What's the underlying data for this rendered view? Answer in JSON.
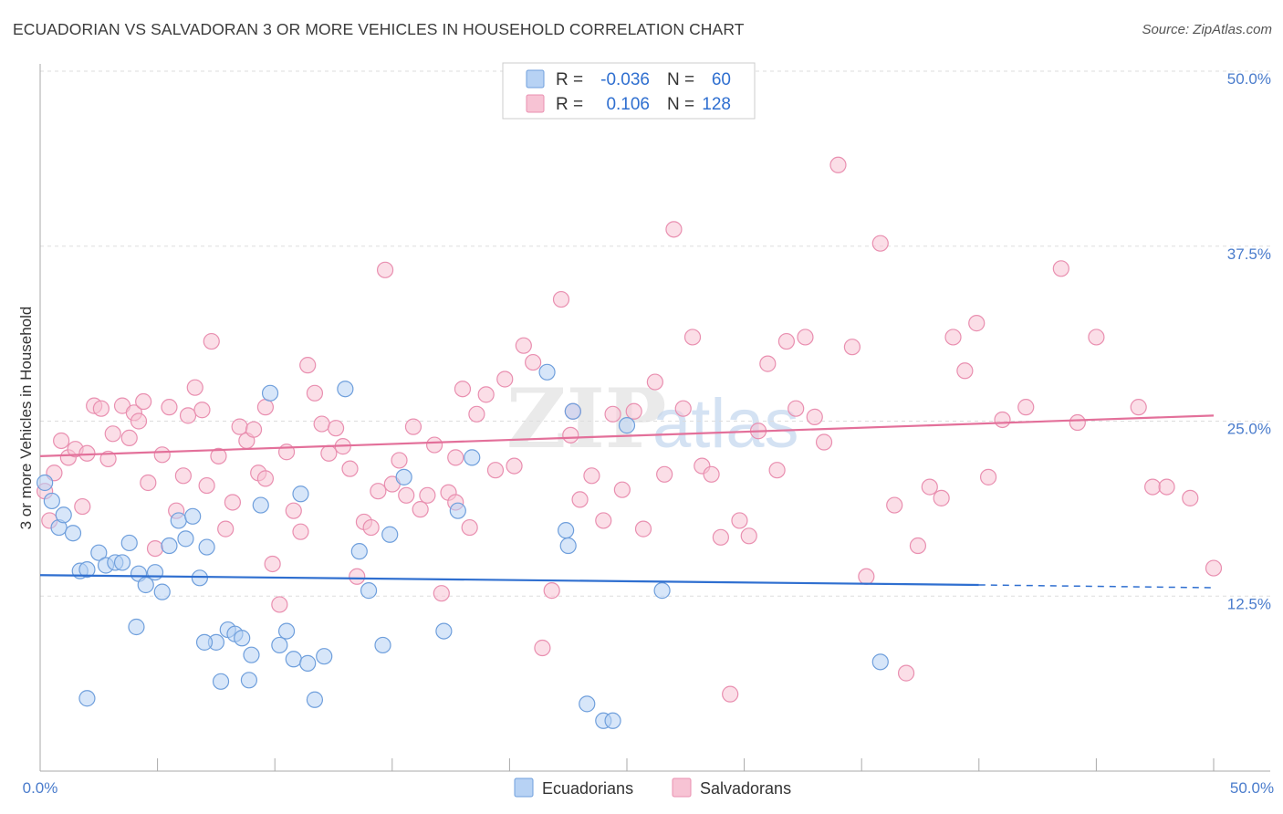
{
  "title": "ECUADORIAN VS SALVADORAN 3 OR MORE VEHICLES IN HOUSEHOLD CORRELATION CHART",
  "source": "Source: ZipAtlas.com",
  "watermark": {
    "zip": "ZIP",
    "atlas": "atlas"
  },
  "colors": {
    "ecuadorian_fill": "#b7d2f4",
    "ecuadorian_stroke": "#6f9fdc",
    "ecuadorian_line": "#2f6fd0",
    "salvadoran_fill": "#f7c3d4",
    "salvadoran_stroke": "#e98fb0",
    "salvadoran_line": "#e3709a",
    "tick_label": "#4a7ccc",
    "grid": "#dddddd"
  },
  "legend": {
    "r_label": "R =",
    "n_label": "N =",
    "rows": [
      {
        "series": "Ecuadorians",
        "r": "-0.036",
        "n": "60"
      },
      {
        "series": "Salvadorans",
        "r": "0.106",
        "n": "128"
      }
    ]
  },
  "chart_data": {
    "type": "scatter",
    "title": "ECUADORIAN VS SALVADORAN 3 OR MORE VEHICLES IN HOUSEHOLD CORRELATION CHART",
    "xlabel": "",
    "ylabel": "3 or more Vehicles in Household",
    "xlim": [
      0,
      50
    ],
    "ylim": [
      0,
      50
    ],
    "x_tick_labels": [
      "0.0%",
      "50.0%"
    ],
    "y_ticks": [
      12.5,
      25.0,
      37.5,
      50.0
    ],
    "y_tick_labels": [
      "12.5%",
      "25.0%",
      "37.5%",
      "50.0%"
    ],
    "grid": true,
    "legend_position": "top-center",
    "series": [
      {
        "name": "Ecuadorians",
        "trend": {
          "x": [
            0,
            40
          ],
          "y": [
            14.0,
            13.3
          ],
          "dashed_extension": {
            "x": [
              40,
              50
            ],
            "y": [
              13.3,
              13.1
            ]
          }
        },
        "points": [
          [
            0.2,
            20.6
          ],
          [
            0.5,
            19.3
          ],
          [
            0.8,
            17.4
          ],
          [
            1.0,
            18.3
          ],
          [
            1.4,
            17.0
          ],
          [
            1.7,
            14.3
          ],
          [
            2.0,
            14.4
          ],
          [
            2.5,
            15.6
          ],
          [
            2.8,
            14.7
          ],
          [
            3.2,
            14.9
          ],
          [
            3.5,
            14.9
          ],
          [
            3.8,
            16.3
          ],
          [
            4.2,
            14.1
          ],
          [
            4.5,
            13.3
          ],
          [
            4.9,
            14.2
          ],
          [
            5.2,
            12.8
          ],
          [
            5.5,
            16.1
          ],
          [
            5.9,
            17.9
          ],
          [
            6.2,
            16.6
          ],
          [
            6.5,
            18.2
          ],
          [
            6.8,
            13.8
          ],
          [
            7.1,
            16.0
          ],
          [
            7.5,
            9.2
          ],
          [
            7.7,
            6.4
          ],
          [
            8.0,
            10.1
          ],
          [
            8.3,
            9.8
          ],
          [
            8.6,
            9.5
          ],
          [
            8.9,
            6.5
          ],
          [
            9.0,
            8.3
          ],
          [
            9.4,
            19.0
          ],
          [
            9.8,
            27.0
          ],
          [
            10.2,
            9.0
          ],
          [
            10.5,
            10.0
          ],
          [
            10.8,
            8.0
          ],
          [
            11.1,
            19.8
          ],
          [
            11.4,
            7.7
          ],
          [
            11.7,
            5.1
          ],
          [
            12.1,
            8.2
          ],
          [
            13.0,
            27.3
          ],
          [
            13.6,
            15.7
          ],
          [
            14.0,
            12.9
          ],
          [
            14.6,
            9.0
          ],
          [
            14.9,
            16.9
          ],
          [
            15.5,
            21.0
          ],
          [
            17.2,
            10.0
          ],
          [
            17.8,
            18.6
          ],
          [
            18.4,
            22.4
          ],
          [
            21.6,
            28.5
          ],
          [
            22.4,
            17.2
          ],
          [
            22.5,
            16.1
          ],
          [
            22.7,
            25.7
          ],
          [
            23.3,
            4.8
          ],
          [
            24.0,
            3.6
          ],
          [
            24.4,
            3.6
          ],
          [
            25.0,
            24.7
          ],
          [
            26.5,
            12.9
          ],
          [
            35.8,
            7.8
          ],
          [
            4.1,
            10.3
          ],
          [
            2.0,
            5.2
          ],
          [
            7.0,
            9.2
          ]
        ]
      },
      {
        "name": "Salvadorans",
        "trend": {
          "x": [
            0,
            50
          ],
          "y": [
            22.5,
            25.4
          ]
        },
        "points": [
          [
            0.2,
            20.0
          ],
          [
            0.4,
            17.9
          ],
          [
            0.6,
            21.3
          ],
          [
            0.9,
            23.6
          ],
          [
            1.2,
            22.4
          ],
          [
            1.5,
            23.0
          ],
          [
            1.8,
            18.9
          ],
          [
            2.0,
            22.7
          ],
          [
            2.3,
            26.1
          ],
          [
            2.6,
            25.9
          ],
          [
            2.9,
            22.3
          ],
          [
            3.1,
            24.1
          ],
          [
            3.5,
            26.1
          ],
          [
            3.8,
            23.8
          ],
          [
            4.0,
            25.6
          ],
          [
            4.2,
            25.0
          ],
          [
            4.4,
            26.4
          ],
          [
            4.6,
            20.6
          ],
          [
            4.9,
            15.9
          ],
          [
            5.2,
            22.6
          ],
          [
            5.5,
            26.0
          ],
          [
            5.8,
            18.6
          ],
          [
            6.1,
            21.1
          ],
          [
            6.3,
            25.4
          ],
          [
            6.6,
            27.4
          ],
          [
            6.9,
            25.8
          ],
          [
            7.1,
            20.4
          ],
          [
            7.3,
            30.7
          ],
          [
            7.6,
            22.5
          ],
          [
            7.9,
            17.3
          ],
          [
            8.2,
            19.2
          ],
          [
            8.5,
            24.6
          ],
          [
            8.8,
            23.6
          ],
          [
            9.1,
            24.4
          ],
          [
            9.3,
            21.3
          ],
          [
            9.6,
            20.9
          ],
          [
            9.9,
            14.8
          ],
          [
            10.2,
            11.9
          ],
          [
            10.5,
            22.8
          ],
          [
            10.8,
            18.6
          ],
          [
            11.1,
            17.1
          ],
          [
            11.4,
            29.0
          ],
          [
            11.7,
            27.0
          ],
          [
            12.0,
            24.8
          ],
          [
            12.3,
            22.7
          ],
          [
            12.6,
            24.5
          ],
          [
            12.9,
            23.2
          ],
          [
            13.2,
            21.6
          ],
          [
            13.5,
            13.9
          ],
          [
            13.8,
            17.8
          ],
          [
            14.1,
            17.4
          ],
          [
            14.4,
            20.0
          ],
          [
            14.7,
            35.8
          ],
          [
            15.0,
            20.5
          ],
          [
            15.3,
            22.2
          ],
          [
            15.6,
            19.7
          ],
          [
            15.9,
            24.6
          ],
          [
            16.2,
            18.7
          ],
          [
            16.5,
            19.7
          ],
          [
            16.8,
            23.3
          ],
          [
            17.1,
            12.7
          ],
          [
            17.4,
            19.9
          ],
          [
            17.7,
            22.4
          ],
          [
            18.0,
            27.3
          ],
          [
            18.3,
            17.4
          ],
          [
            18.6,
            25.5
          ],
          [
            19.0,
            26.9
          ],
          [
            19.4,
            21.5
          ],
          [
            19.8,
            28.0
          ],
          [
            20.2,
            21.8
          ],
          [
            20.6,
            30.4
          ],
          [
            21.0,
            29.2
          ],
          [
            21.4,
            8.8
          ],
          [
            21.8,
            12.9
          ],
          [
            22.2,
            33.7
          ],
          [
            22.6,
            24.0
          ],
          [
            23.0,
            19.4
          ],
          [
            23.5,
            21.1
          ],
          [
            24.0,
            17.9
          ],
          [
            24.4,
            25.5
          ],
          [
            24.8,
            20.1
          ],
          [
            25.3,
            25.7
          ],
          [
            25.7,
            17.3
          ],
          [
            26.2,
            27.8
          ],
          [
            26.6,
            21.2
          ],
          [
            27.0,
            38.7
          ],
          [
            27.4,
            25.9
          ],
          [
            27.8,
            31.0
          ],
          [
            28.2,
            21.8
          ],
          [
            28.6,
            21.2
          ],
          [
            29.0,
            16.7
          ],
          [
            29.4,
            5.5
          ],
          [
            29.8,
            17.9
          ],
          [
            30.2,
            16.8
          ],
          [
            30.6,
            24.3
          ],
          [
            31.0,
            29.1
          ],
          [
            31.4,
            21.5
          ],
          [
            31.8,
            30.7
          ],
          [
            32.2,
            25.9
          ],
          [
            32.6,
            31.0
          ],
          [
            33.0,
            25.3
          ],
          [
            33.4,
            23.5
          ],
          [
            34.0,
            43.3
          ],
          [
            34.6,
            30.3
          ],
          [
            35.2,
            13.9
          ],
          [
            35.8,
            37.7
          ],
          [
            36.4,
            19.0
          ],
          [
            36.9,
            7.0
          ],
          [
            37.4,
            16.1
          ],
          [
            37.9,
            20.3
          ],
          [
            38.4,
            19.5
          ],
          [
            38.9,
            31.0
          ],
          [
            39.4,
            28.6
          ],
          [
            39.9,
            32.0
          ],
          [
            40.4,
            21.0
          ],
          [
            41.0,
            25.1
          ],
          [
            42.0,
            26.0
          ],
          [
            43.5,
            35.9
          ],
          [
            44.2,
            24.9
          ],
          [
            45.0,
            31.0
          ],
          [
            46.8,
            26.0
          ],
          [
            47.4,
            20.3
          ],
          [
            48.0,
            20.3
          ],
          [
            49.0,
            19.5
          ],
          [
            50.0,
            14.5
          ],
          [
            22.7,
            25.7
          ],
          [
            17.7,
            19.2
          ],
          [
            9.6,
            26.0
          ]
        ]
      }
    ]
  },
  "bottom_legend": [
    "Ecuadorians",
    "Salvadorans"
  ]
}
